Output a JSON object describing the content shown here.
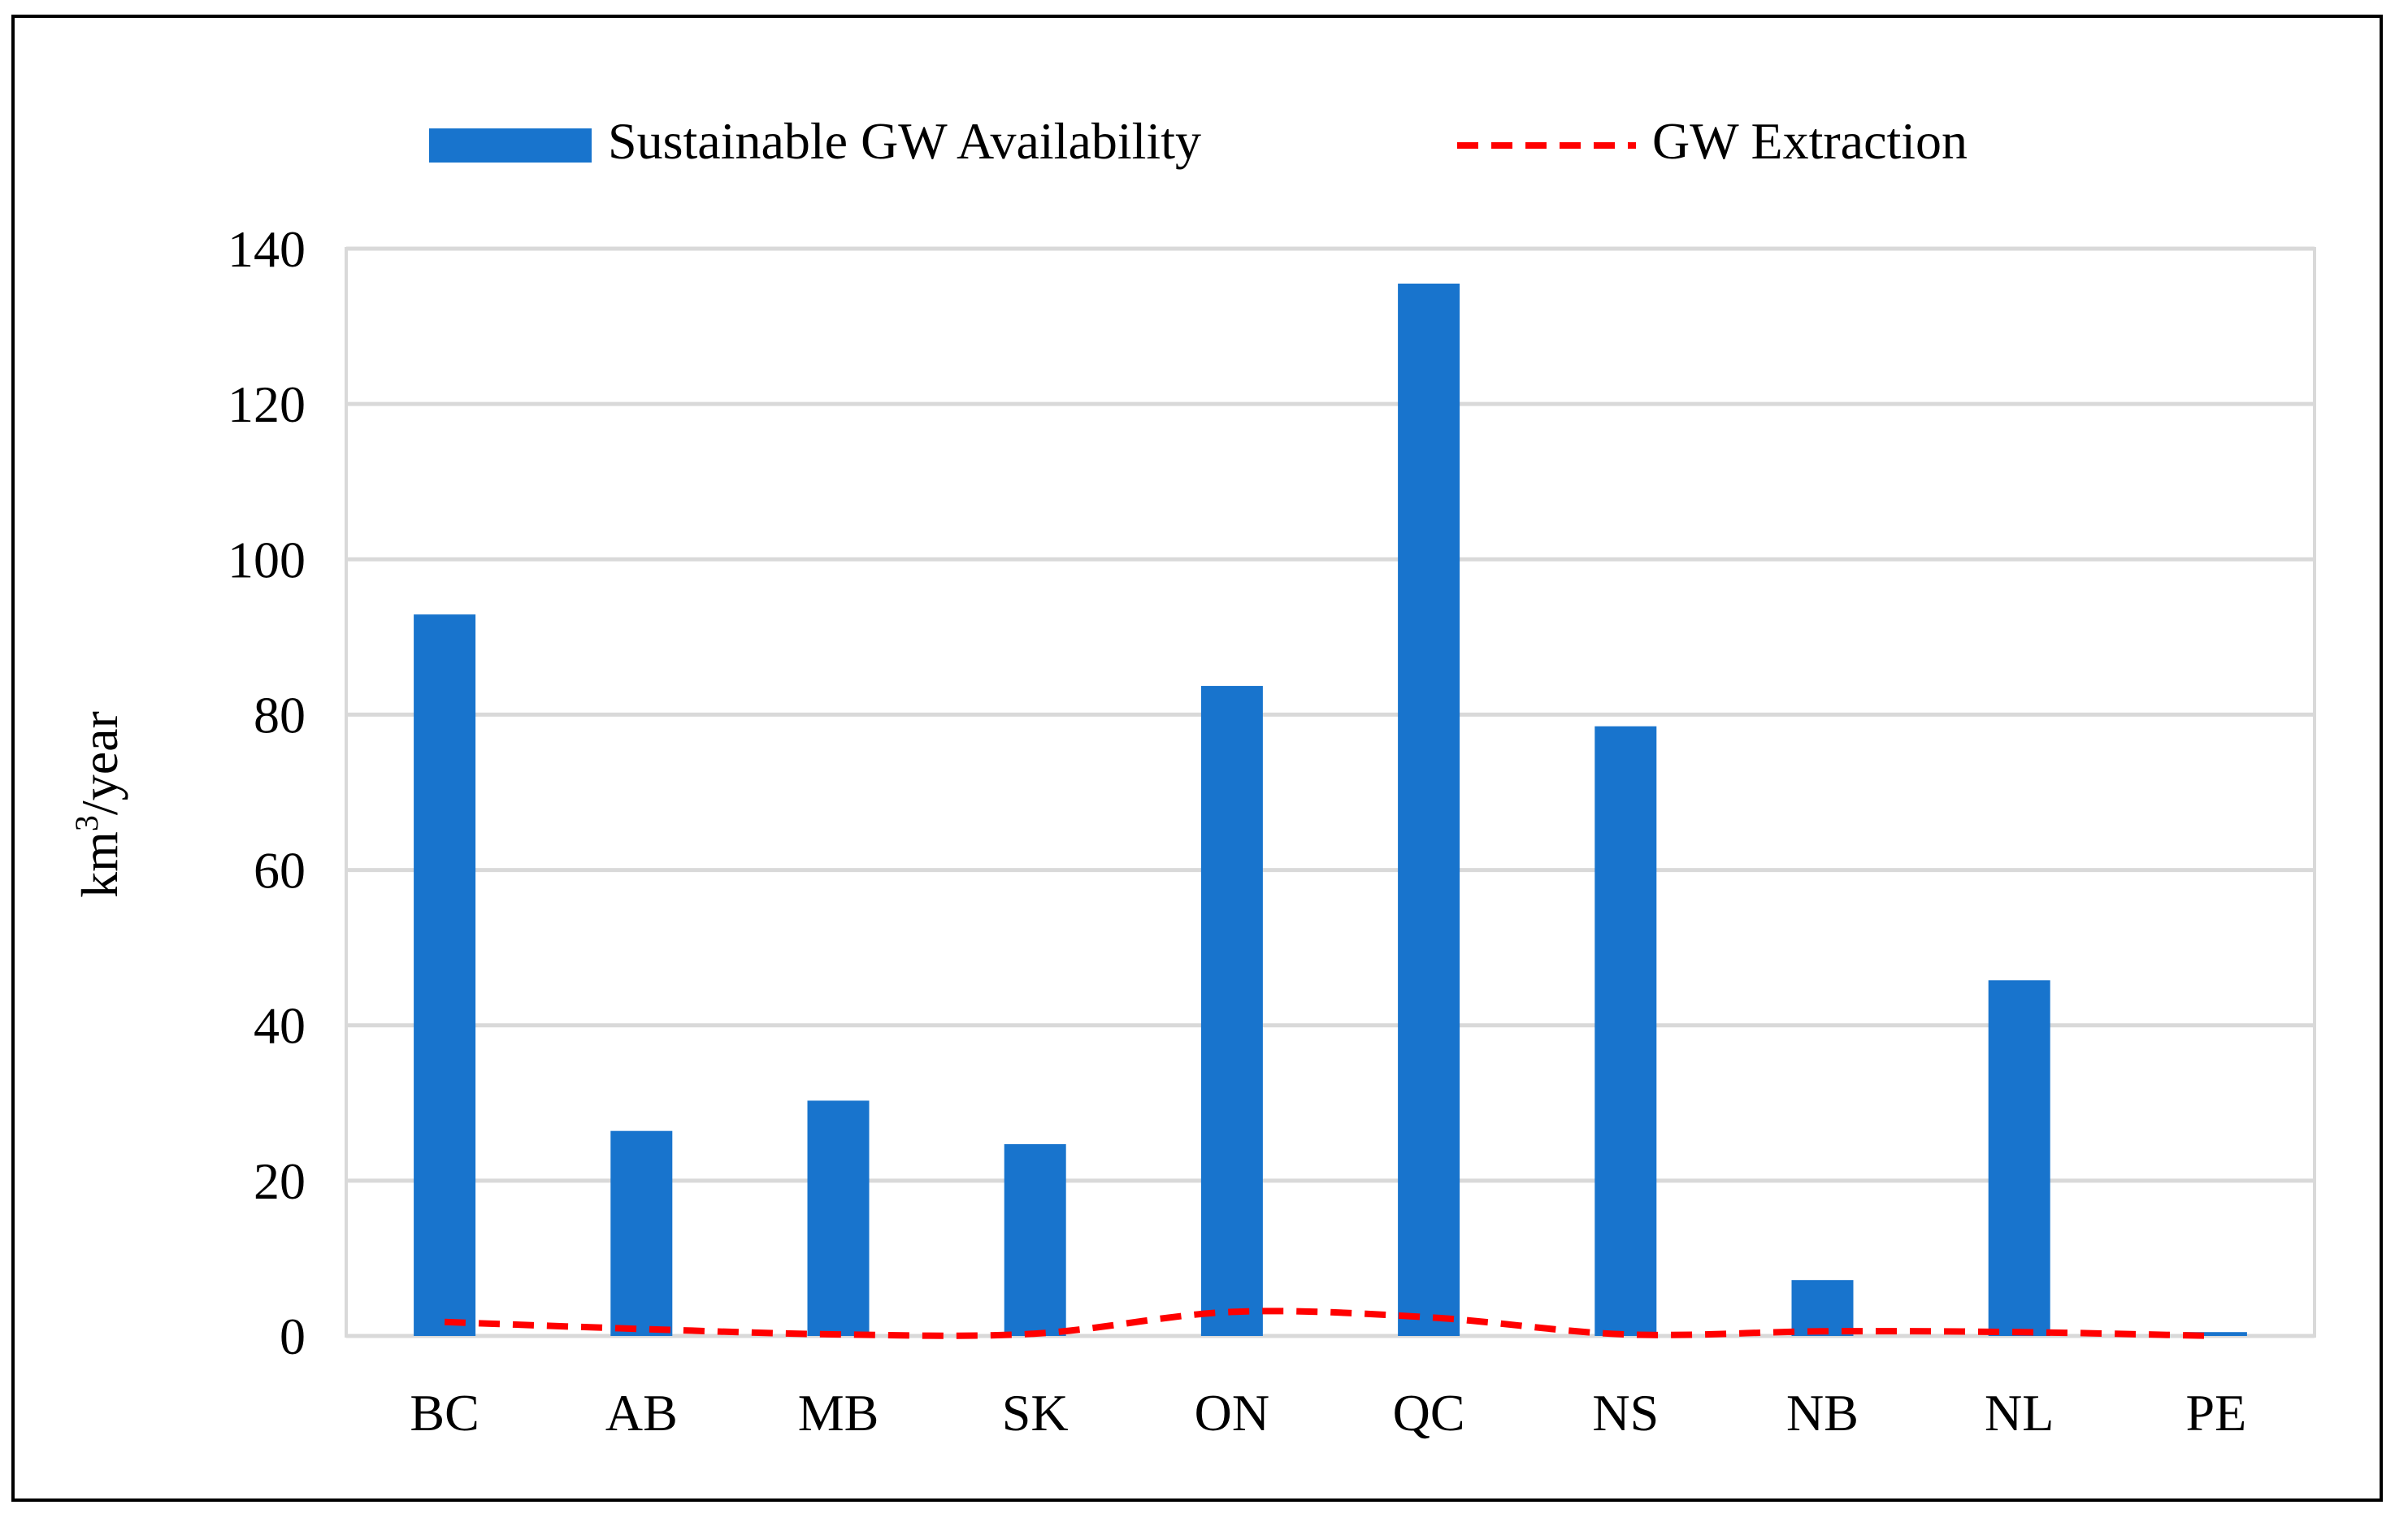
{
  "chart_data": {
    "type": "bar",
    "title": "",
    "xlabel": "",
    "ylabel": {
      "base": "km",
      "superscript": "3",
      "suffix": "/year"
    },
    "ylim": [
      0,
      140
    ],
    "yticks": [
      0,
      20,
      40,
      60,
      80,
      100,
      120,
      140
    ],
    "grid": true,
    "legend_position": "top",
    "categories": [
      "BC",
      "AB",
      "MB",
      "SK",
      "ON",
      "QC",
      "NS",
      "NB",
      "NL",
      "PE"
    ],
    "series": [
      {
        "name": "Sustainable GW Availability",
        "type": "bar",
        "color": "#1874CD",
        "values": [
          92.9,
          26.4,
          30.3,
          24.7,
          83.7,
          135.5,
          78.5,
          7.2,
          45.8,
          0.5
        ]
      },
      {
        "name": "GW Extraction",
        "type": "line",
        "style": "dashed",
        "color": "#FF0000",
        "values": [
          1.8,
          0.9,
          0.2,
          0.3,
          3.1,
          2.4,
          0.2,
          0.6,
          0.5,
          0.0
        ]
      }
    ]
  }
}
